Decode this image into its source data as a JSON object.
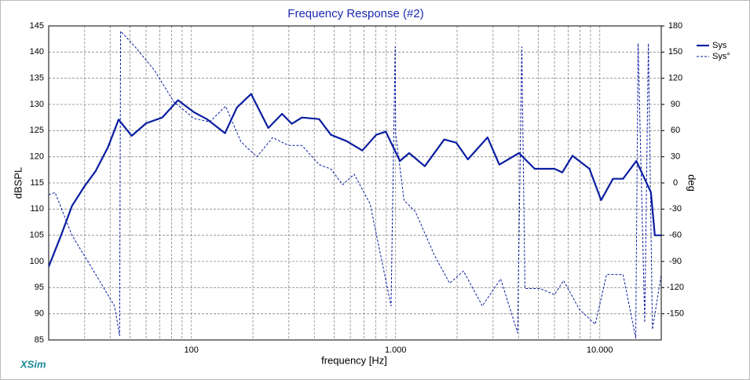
{
  "chart_data": {
    "type": "line",
    "title": "Frequency Response (#2)",
    "xlabel": "frequency [Hz]",
    "ylabel": "dBSPL",
    "y2label": "deg",
    "brand": "XSim",
    "xscale": "log",
    "xlim": [
      20,
      20000
    ],
    "xticks": [
      100,
      {
        "value": 1000,
        "label": "1.000"
      },
      {
        "value": 10000,
        "label": "10.000"
      }
    ],
    "xgrid": [
      30,
      40,
      50,
      60,
      70,
      80,
      90,
      200,
      300,
      400,
      500,
      600,
      700,
      800,
      900,
      2000,
      3000,
      4000,
      5000,
      6000,
      7000,
      8000,
      9000
    ],
    "ylim": [
      85,
      145
    ],
    "yticks": [
      85,
      90,
      95,
      100,
      105,
      110,
      115,
      120,
      125,
      130,
      135,
      140,
      145
    ],
    "y2lim": [
      -180,
      180
    ],
    "y2ticks": [
      -150,
      -120,
      -90,
      -60,
      -30,
      0,
      30,
      60,
      90,
      120,
      150,
      180
    ],
    "grid": true,
    "legend": "top-right",
    "series": [
      {
        "name": "Sys",
        "color": "#0a1ea0",
        "style": "solid",
        "axis": "y",
        "x": [
          20,
          23,
          26,
          30,
          34,
          39,
          44,
          51,
          60,
          72,
          86,
          103,
          119,
          146,
          167,
          196,
          238,
          278,
          310,
          348,
          422,
          482,
          575,
          687,
          804,
          895,
          1050,
          1165,
          1390,
          1730,
          1980,
          2260,
          2820,
          3220,
          4020,
          4800,
          6000,
          6550,
          7350,
          8900,
          10150,
          11600,
          13000,
          15100,
          17800,
          18600,
          20000
        ],
        "values": [
          99,
          105,
          110.6,
          114.4,
          117.3,
          121.8,
          127.1,
          124,
          126.4,
          127.5,
          130.8,
          128.5,
          127.2,
          124.5,
          129.4,
          132,
          125.5,
          128.2,
          126.3,
          127.5,
          127.2,
          124.2,
          123,
          121.2,
          124.2,
          124.8,
          119.2,
          120.7,
          118.2,
          123.3,
          122.7,
          119.5,
          123.7,
          118.5,
          120.7,
          117.7,
          117.7,
          117,
          120.2,
          117.7,
          111.7,
          115.8,
          115.8,
          119.2,
          113.2,
          105,
          105
        ]
      },
      {
        "name": "Sys°",
        "color": "#0a1ea0",
        "style": "dashed",
        "axis": "y2",
        "x": [
          20,
          21.5,
          26,
          34,
          42,
          44.5,
          45,
          53,
          66,
          82,
          103,
          123,
          147,
          175,
          209,
          250,
          299,
          348,
          422,
          482,
          550,
          627,
          750,
          950,
          995,
          1000,
          1100,
          1250,
          1550,
          1840,
          2150,
          2660,
          3270,
          3960,
          4150,
          4300,
          5100,
          6000,
          6650,
          7950,
          9500,
          10800,
          13000,
          15000,
          15400,
          16600,
          17300,
          18100,
          20000
        ],
        "values": [
          -13.5,
          -11,
          -60,
          -105,
          -141,
          -175,
          174,
          156,
          129,
          93,
          74,
          70,
          88,
          47,
          30,
          52,
          43,
          43,
          21,
          16,
          -2,
          10,
          -24,
          -141,
          156,
          57,
          -20,
          -33,
          -83,
          -115,
          -101,
          -141,
          -110,
          -172,
          156,
          -121,
          -121,
          -128,
          -112,
          -145,
          -162,
          -105,
          -105,
          -178,
          160,
          -160,
          160,
          -168,
          -105
        ]
      }
    ]
  }
}
